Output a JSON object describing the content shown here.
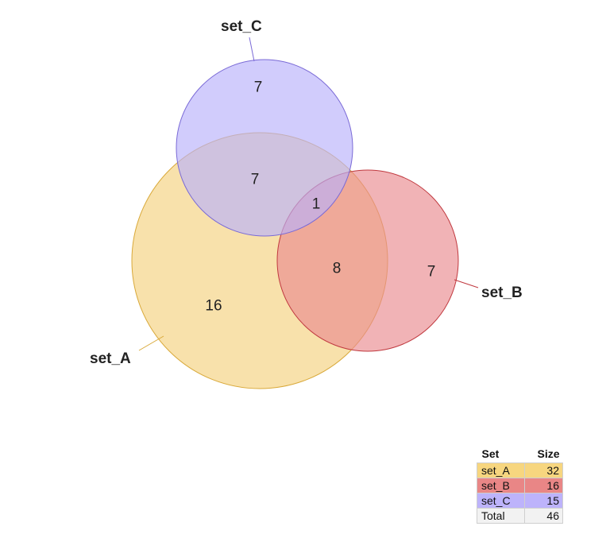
{
  "sets": [
    {
      "name": "set_A",
      "size": 32,
      "fill": "#f5d68a",
      "stroke": "#d9a93a",
      "table_color": "#f7d67f"
    },
    {
      "name": "set_B",
      "size": 16,
      "fill": "#e98a8f",
      "stroke": "#c0393f",
      "table_color": "#e98686"
    },
    {
      "name": "set_C",
      "size": 15,
      "fill": "#b9b0fb",
      "stroke": "#7a6ad6",
      "table_color": "#bdb3fb"
    }
  ],
  "regions": {
    "c_only": "7",
    "a_and_c": "7",
    "a_b_c": "1",
    "a_and_b": "8",
    "b_only": "7",
    "a_only": "16"
  },
  "table": {
    "header_set": "Set",
    "header_size": "Size",
    "rows": [
      {
        "name": "set_A",
        "size": "32"
      },
      {
        "name": "set_B",
        "size": "16"
      },
      {
        "name": "set_C",
        "size": "15"
      },
      {
        "name": "Total",
        "size": "46"
      }
    ],
    "total_color": "#f2f2f2"
  }
}
